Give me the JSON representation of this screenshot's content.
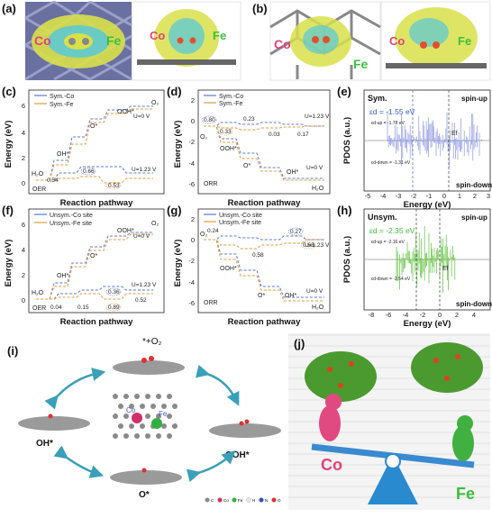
{
  "panels": {
    "a": {
      "label": "(a)",
      "co": "Co",
      "fe": "Fe"
    },
    "b": {
      "label": "(b)",
      "co": "Co",
      "fe": "Fe"
    },
    "c": {
      "label": "(c)",
      "legend": [
        "Sym.-Co",
        "Sym.-Fe"
      ],
      "ylabel": "Energy (eV)",
      "xlabel": "Reaction pathway",
      "tag": "OER",
      "states": [
        "H₂O",
        "OH*",
        "O*",
        "OOH*",
        "O₂"
      ],
      "u0": "U=0 V",
      "u123": "U=1.23 V",
      "vals": [
        "0.54",
        "0.66",
        "0.53"
      ],
      "yticks": [
        "6",
        "4",
        "2",
        "0"
      ]
    },
    "d": {
      "label": "(d)",
      "legend": [
        "Sym.-Co",
        "Sym.-Fe"
      ],
      "ylabel": "Energy (eV)",
      "xlabel": "Reaction pathway",
      "tag": "ORR",
      "states": [
        "O₂",
        "OOH*",
        "O*",
        "OH*",
        "H₂O"
      ],
      "u0": "U=0 V",
      "u123": "U=1.23 V",
      "vals": [
        "0.80",
        "0.33",
        "0.23",
        "0.03",
        "0.17"
      ],
      "yticks": [
        "2",
        "0",
        "-2",
        "-4",
        "-6"
      ]
    },
    "e": {
      "label": "(e)",
      "tag": "Sym.",
      "spinup": "spin-up",
      "spindown": "spin-down",
      "ed": "εd = -1.55 eV",
      "edup": "εd-up = -1.78 eV",
      "eddown": "εd-down = -1.31 eV",
      "ef": "Ef",
      "ylabel": "PDOS (a.u.)",
      "xlabel": "Energy (eV)",
      "xticks": [
        "-5",
        "-4",
        "-3",
        "-2",
        "-1",
        "0",
        "1",
        "2",
        "3"
      ]
    },
    "f": {
      "label": "(f)",
      "legend": [
        "Unsym.-Co site",
        "Unsym.-Fe site"
      ],
      "ylabel": "Energy (eV)",
      "xlabel": "Reaction pathway",
      "tag": "OER",
      "states": [
        "H₂O",
        "OH*",
        "O*",
        "OOH*",
        "O₂"
      ],
      "u0": "U=0 V",
      "u123": "U=1.23 V",
      "vals": [
        "0.04",
        "0.15",
        "0.36",
        "0.89",
        "0.52"
      ],
      "yticks": [
        "6",
        "4",
        "2",
        "0"
      ]
    },
    "g": {
      "label": "(g)",
      "legend": [
        "Unsym.-Co site",
        "Unsym.-Fe site"
      ],
      "ylabel": "Energy (eV)",
      "xlabel": "Reaction pathway",
      "tag": "ORR",
      "states": [
        "O₂",
        "OOH*",
        "O*",
        "OH*",
        "H₂O"
      ],
      "u0": "U=0 V",
      "u123": "U=1.23 V",
      "vals": [
        "0.24",
        "0.58",
        "0.27",
        "0.63"
      ],
      "yticks": [
        "2",
        "0",
        "-2",
        "-4",
        "-6"
      ]
    },
    "h": {
      "label": "(h)",
      "tag": "Unsym.",
      "spinup": "spin-up",
      "spindown": "spin-down",
      "ed": "εd = -2.35 eV",
      "edup": "εd-up = -2.16 eV",
      "eddown": "εd-down = -2.54 eV",
      "ef": "Ef",
      "ylabel": "PDOS (a.u.)",
      "xlabel": "Energy (eV)",
      "xticks": [
        "-8",
        "-6",
        "-4",
        "-2",
        "0",
        "2",
        "4"
      ]
    },
    "i": {
      "label": "(i)",
      "top": "*+O₂",
      "left": "OH*",
      "right": "OOH*",
      "bottom": "O*",
      "co": "Co",
      "fe": "Fe",
      "legend": [
        "C",
        "Co",
        "Fe",
        "H",
        "N",
        "O"
      ]
    },
    "j": {
      "label": "(j)",
      "co": "Co",
      "fe": "Fe"
    }
  },
  "colors": {
    "co_line": "#5a78d8",
    "fe_line": "#e39a3b",
    "sym_pdos": "#8c96e0",
    "unsym_pdos": "#5cc23a",
    "co_text": "#e4407a",
    "fe_text": "#3cbf3c"
  }
}
